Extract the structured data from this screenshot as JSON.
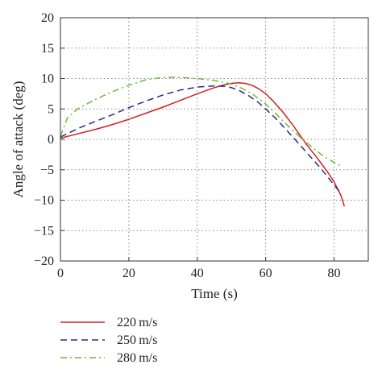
{
  "chart_data": {
    "type": "line",
    "title": "",
    "xlabel": "Time (s)",
    "ylabel": "Angle of attack (deg)",
    "xlim": [
      0,
      90
    ],
    "ylim": [
      -20,
      20
    ],
    "x_ticks": [
      "0",
      "20",
      "40",
      "60",
      "80"
    ],
    "y_ticks": [
      "20",
      "15",
      "10",
      "5",
      "0",
      "−5",
      "−10",
      "−15",
      "−20"
    ],
    "grid": true,
    "legend_position": "below",
    "series": [
      {
        "name": "220 m/s",
        "color": "#d42020",
        "dash": "solid",
        "x": [
          0,
          5,
          10,
          15,
          20,
          25,
          30,
          35,
          40,
          45,
          48,
          50,
          52,
          54,
          56,
          58,
          60,
          62,
          65,
          68,
          70,
          72,
          75,
          78,
          80,
          82,
          83
        ],
        "y": [
          0.2,
          0.9,
          1.6,
          2.4,
          3.3,
          4.3,
          5.3,
          6.4,
          7.5,
          8.5,
          9.0,
          9.2,
          9.3,
          9.2,
          8.9,
          8.3,
          7.5,
          6.4,
          4.5,
          2.3,
          0.7,
          -0.9,
          -3.0,
          -5.3,
          -7.0,
          -9.2,
          -11.0
        ]
      },
      {
        "name": "250 m/s",
        "color": "#2a2a8a",
        "dash": "dashed",
        "x": [
          0,
          3,
          6,
          10,
          15,
          20,
          25,
          30,
          35,
          40,
          45,
          48,
          50,
          52,
          55,
          58,
          60,
          63,
          66,
          70,
          73,
          76,
          79,
          81,
          82
        ],
        "y": [
          0.4,
          1.2,
          2.0,
          2.9,
          4.0,
          5.2,
          6.3,
          7.3,
          8.1,
          8.6,
          8.8,
          8.7,
          8.5,
          8.1,
          7.2,
          6.0,
          5.0,
          3.4,
          1.6,
          -0.9,
          -2.8,
          -4.7,
          -6.8,
          -8.2,
          -8.8
        ]
      },
      {
        "name": "280 m/s",
        "color": "#72b832",
        "dash": "dashdot",
        "x": [
          0,
          2,
          5,
          10,
          15,
          20,
          25,
          30,
          35,
          40,
          45,
          50,
          53,
          56,
          60,
          63,
          66,
          70,
          74,
          77,
          80,
          82
        ],
        "y": [
          0.5,
          3.5,
          5.0,
          6.5,
          7.8,
          8.9,
          9.8,
          10.2,
          10.2,
          10.0,
          9.7,
          9.1,
          8.4,
          7.5,
          5.8,
          4.2,
          2.5,
          0.4,
          -1.5,
          -2.8,
          -3.8,
          -4.4
        ]
      }
    ]
  }
}
